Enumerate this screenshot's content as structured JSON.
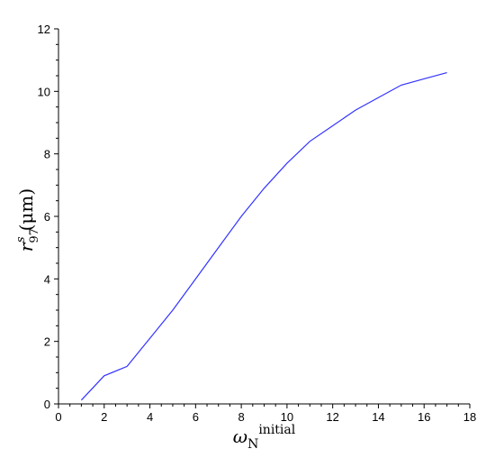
{
  "chart_data": {
    "type": "line",
    "xlabel": {
      "base": "ω",
      "sub": "N",
      "sup": "initial"
    },
    "ylabel": {
      "base": "r",
      "sub": "97",
      "sup": "s",
      "unit": "(μm)"
    },
    "xlim": [
      0,
      18
    ],
    "ylim": [
      0,
      12
    ],
    "xticks": [
      0,
      2,
      4,
      6,
      8,
      10,
      12,
      14,
      16,
      18
    ],
    "yticks": [
      0,
      2,
      4,
      6,
      8,
      10,
      12
    ],
    "grid": false,
    "series": [
      {
        "color": "#3333ff",
        "x": [
          1,
          2,
          3,
          4,
          5,
          6,
          7,
          8,
          9,
          10,
          11,
          12,
          13,
          14,
          15,
          16,
          17
        ],
        "y": [
          0.12,
          0.9,
          1.2,
          2.1,
          3.0,
          4.0,
          5.0,
          6.0,
          6.9,
          7.7,
          8.4,
          8.9,
          9.4,
          9.8,
          10.2,
          10.4,
          10.6
        ]
      }
    ]
  }
}
